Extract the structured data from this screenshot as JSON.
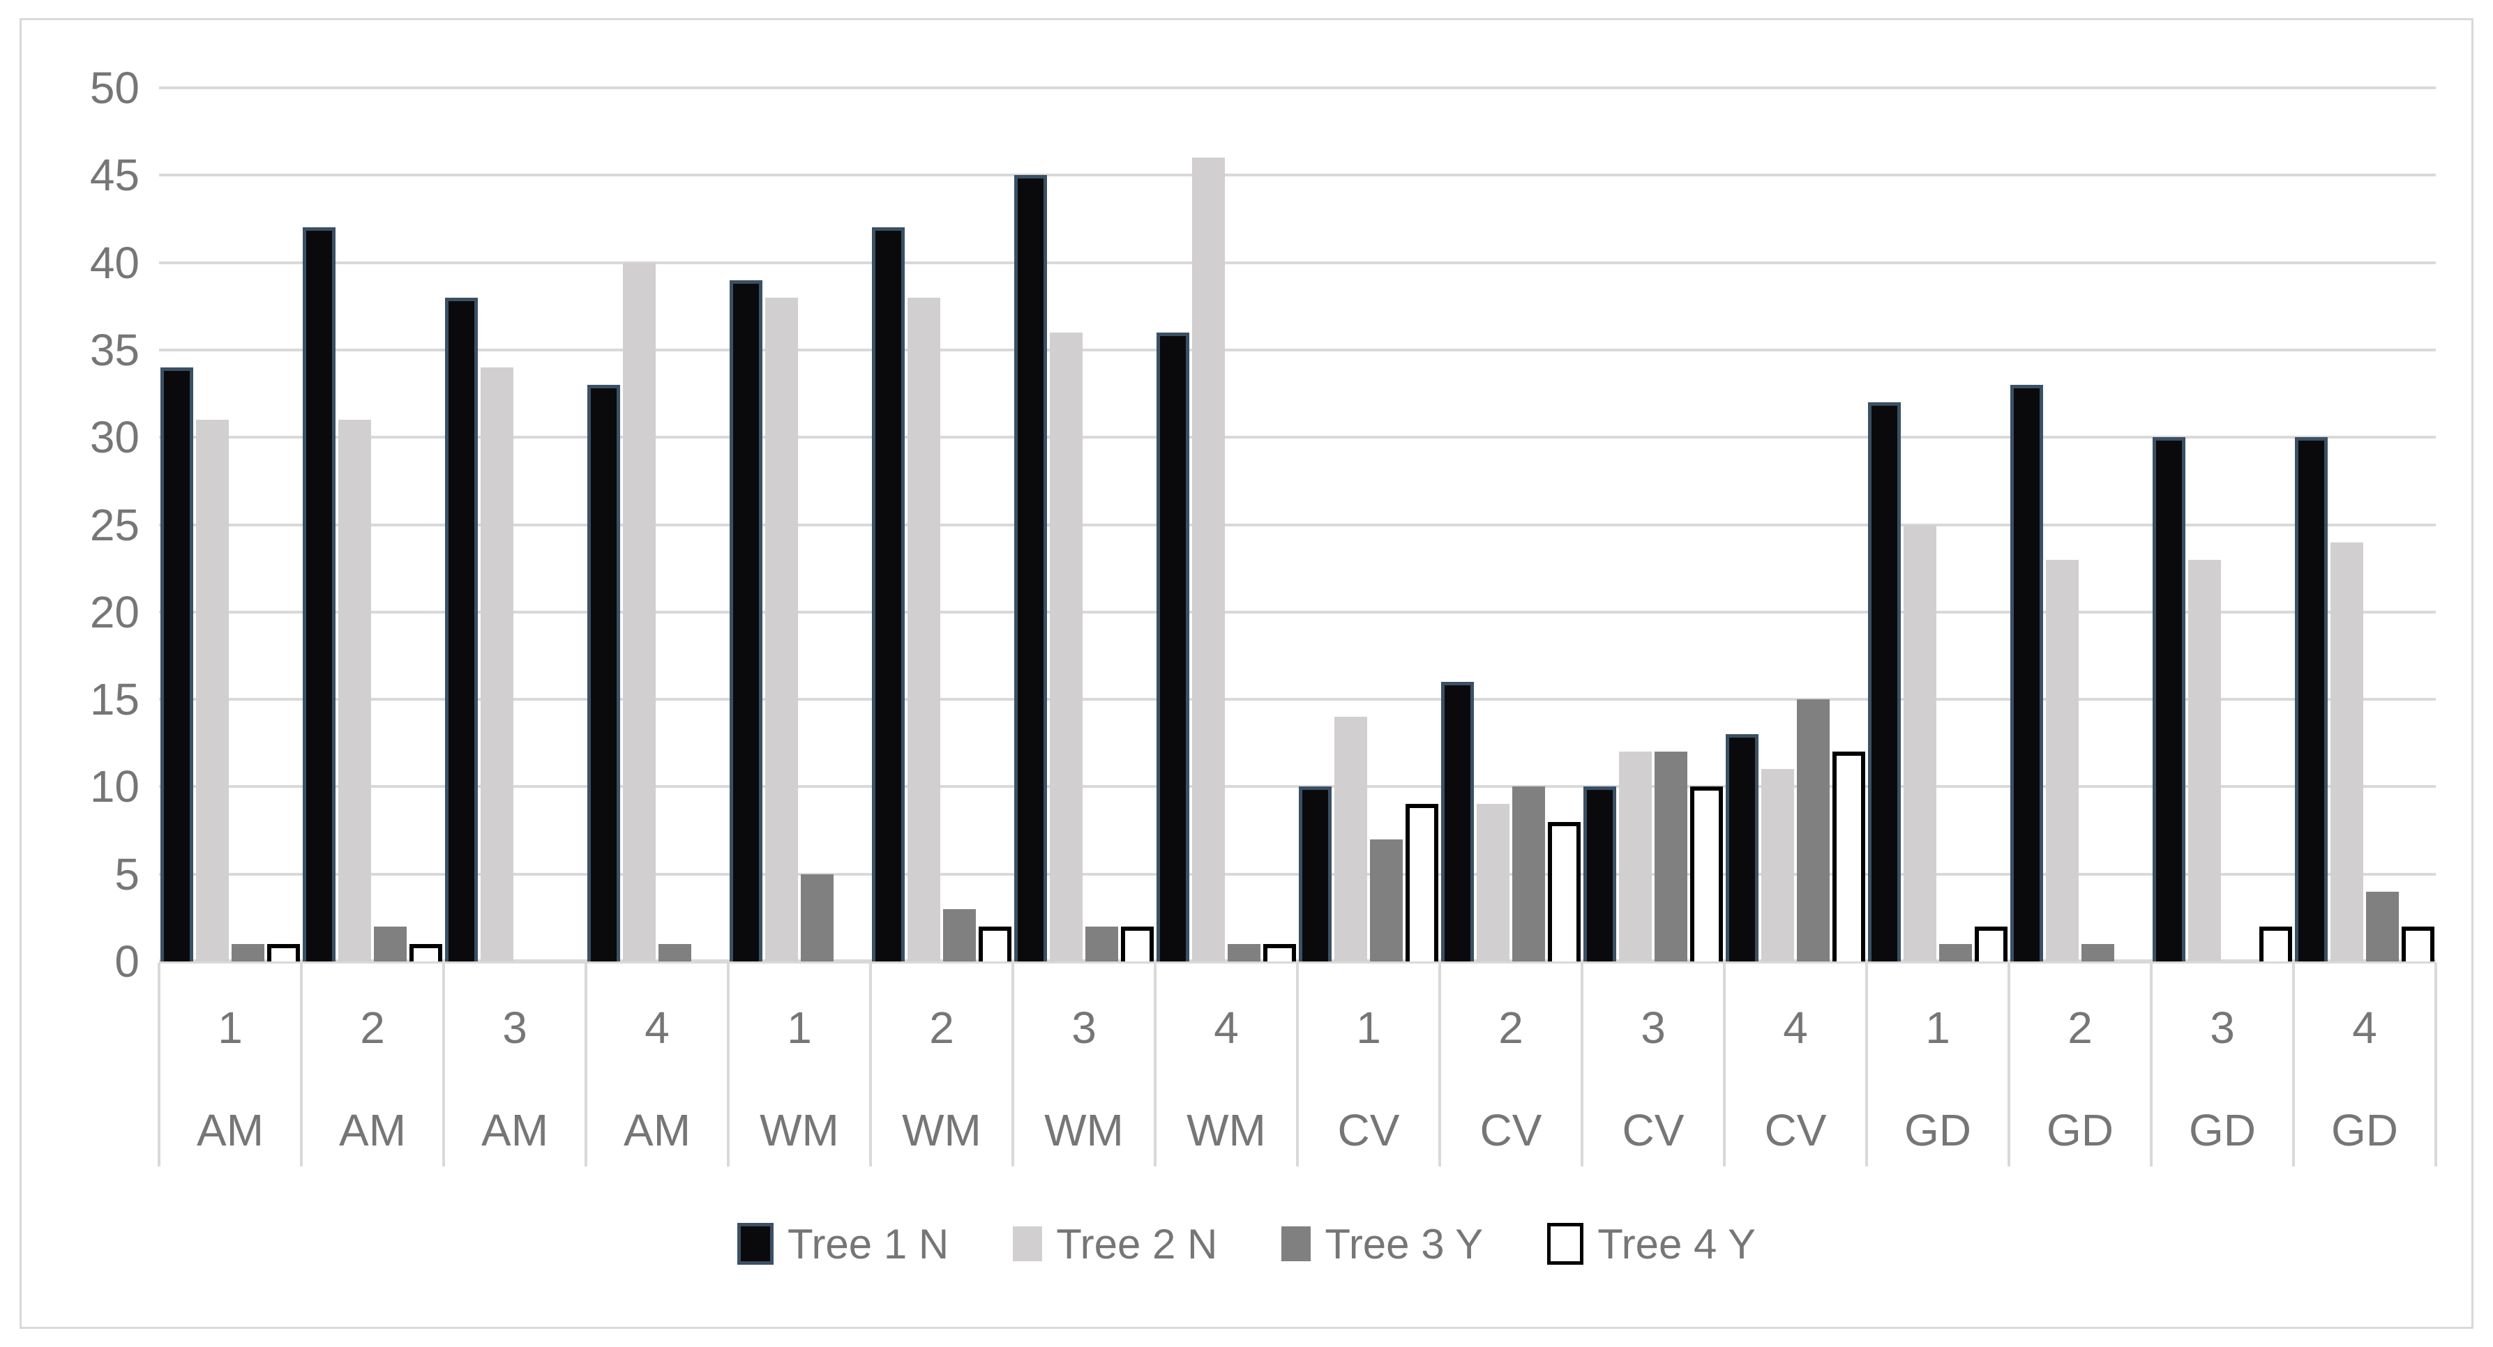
{
  "page": {
    "background": "#FFFFFF",
    "frame_border_color": "#D9D9D9",
    "gridline_color": "#D9D9D9",
    "text_color": "#767676"
  },
  "chart_data": {
    "type": "bar",
    "title": "",
    "xlabel": "",
    "ylabel": "",
    "ylim": [
      0,
      50
    ],
    "ytick_step": 5,
    "ytick_labels": [
      "0",
      "5",
      "10",
      "15",
      "20",
      "25",
      "30",
      "35",
      "40",
      "45",
      "50"
    ],
    "grid": true,
    "legend_position": "bottom",
    "category_numbers": [
      "1",
      "2",
      "3",
      "4",
      "1",
      "2",
      "3",
      "4",
      "1",
      "2",
      "3",
      "4",
      "1",
      "2",
      "3",
      "4"
    ],
    "category_groups": [
      "AM",
      "AM",
      "AM",
      "AM",
      "WM",
      "WM",
      "WM",
      "WM",
      "CV",
      "CV",
      "CV",
      "CV",
      "GD",
      "GD",
      "GD",
      "GD"
    ],
    "series": [
      {
        "name": "Tree 1 N",
        "fill": "#0A0A0C",
        "border": "#3A5064",
        "border_px": 5,
        "values": [
          34,
          42,
          38,
          33,
          39,
          42,
          45,
          36,
          10,
          16,
          10,
          13,
          32,
          33,
          30,
          30
        ]
      },
      {
        "name": "Tree 2 N",
        "fill": "#D1CFCF",
        "border": null,
        "border_px": 0,
        "values": [
          31,
          31,
          34,
          40,
          38,
          38,
          36,
          46,
          14,
          9,
          12,
          11,
          25,
          23,
          23,
          24
        ]
      },
      {
        "name": "Tree 3 Y",
        "fill": "#808080",
        "border": null,
        "border_px": 0,
        "values": [
          1,
          2,
          0,
          1,
          5,
          3,
          2,
          1,
          7,
          10,
          12,
          15,
          1,
          1,
          0,
          4
        ]
      },
      {
        "name": "Tree 4 Y",
        "fill": "#FFFFFF",
        "border": "#000000",
        "border_px": 6,
        "values": [
          1,
          1,
          0,
          0,
          0,
          2,
          2,
          1,
          9,
          8,
          10,
          12,
          2,
          0,
          2,
          2
        ]
      }
    ]
  }
}
